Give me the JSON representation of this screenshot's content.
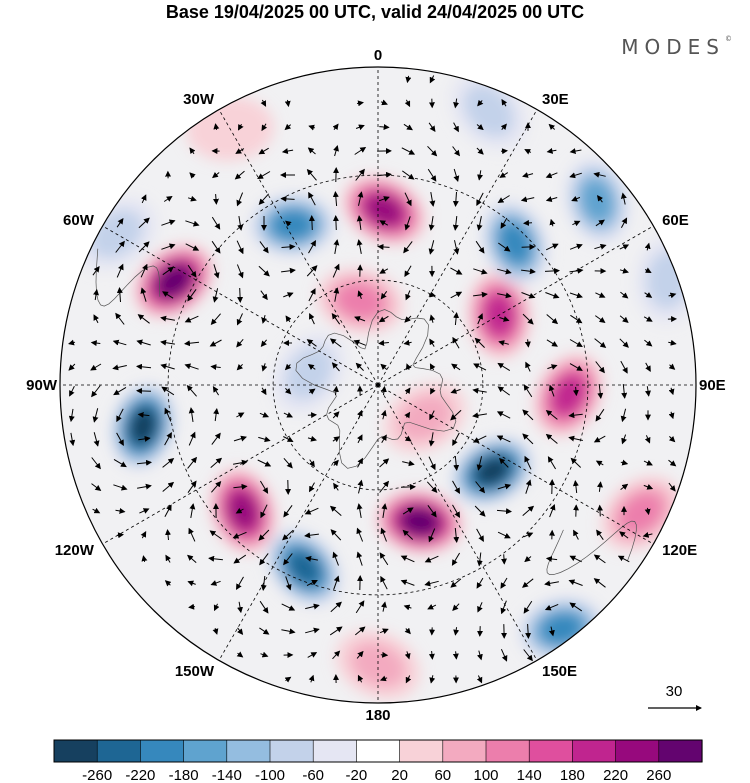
{
  "title": "Base 19/04/2025 00 UTC, valid 24/04/2025 00 UTC",
  "brand": {
    "name": "MODES",
    "mark": "©"
  },
  "map": {
    "projection": "south-polar-stereographic",
    "meridians": [
      {
        "lon": 0,
        "label": "0"
      },
      {
        "lon": 30,
        "label": "30E"
      },
      {
        "lon": 60,
        "label": "60E"
      },
      {
        "lon": 90,
        "label": "90E"
      },
      {
        "lon": 120,
        "label": "120E"
      },
      {
        "lon": 150,
        "label": "150E"
      },
      {
        "lon": 180,
        "label": "180"
      },
      {
        "lon": -150,
        "label": "150W"
      },
      {
        "lon": -120,
        "label": "120W"
      },
      {
        "lon": -90,
        "label": "90W"
      },
      {
        "lon": -60,
        "label": "60W"
      },
      {
        "lon": -30,
        "label": "30W"
      }
    ],
    "anomaly_centers": [
      {
        "lon": 2,
        "r": 0.55,
        "v": 230
      },
      {
        "lon": -28,
        "r": 0.57,
        "v": -200
      },
      {
        "lon": -63,
        "r": 0.72,
        "v": 260
      },
      {
        "lon": -100,
        "r": 0.75,
        "v": -260
      },
      {
        "lon": -133,
        "r": 0.58,
        "v": 230
      },
      {
        "lon": -158,
        "r": 0.62,
        "v": -250
      },
      {
        "lon": 163,
        "r": 0.45,
        "v": 260
      },
      {
        "lon": 127,
        "r": 0.45,
        "v": -260
      },
      {
        "lon": 93,
        "r": 0.6,
        "v": 210
      },
      {
        "lon": 60,
        "r": 0.44,
        "v": 200
      },
      {
        "lon": 44,
        "r": 0.62,
        "v": -190
      },
      {
        "lon": 50,
        "r": 0.9,
        "v": -140
      },
      {
        "lon": 143,
        "r": 0.96,
        "v": -210
      },
      {
        "lon": 116,
        "r": 0.92,
        "v": 100
      },
      {
        "lon": -12,
        "r": 0.27,
        "v": 120
      },
      {
        "lon": 22,
        "r": 0.93,
        "v": -80
      },
      {
        "lon": -60,
        "r": 0.95,
        "v": -60
      },
      {
        "lon": -80,
        "r": 0.22,
        "v": -60
      },
      {
        "lon": 70,
        "r": 0.97,
        "v": -60
      },
      {
        "lon": 180,
        "r": 0.88,
        "v": 60
      },
      {
        "lon": 125,
        "r": 0.18,
        "v": 60
      },
      {
        "lon": -30,
        "r": 0.93,
        "v": 40
      }
    ]
  },
  "vector_key": {
    "value": "30"
  },
  "colorbar": {
    "ticks": [
      "-260",
      "-220",
      "-180",
      "-140",
      "-100",
      "-60",
      "-20",
      "20",
      "60",
      "100",
      "140",
      "180",
      "220",
      "260"
    ],
    "colors": [
      "#16405f",
      "#1e6694",
      "#3688bd",
      "#5fa3cf",
      "#94bde0",
      "#c3d2ea",
      "#e5e6f3",
      "#ffffff",
      "#f8d2d8",
      "#f3aac0",
      "#ec7eac",
      "#df4f9e",
      "#c0258f",
      "#97097d",
      "#63046f"
    ]
  }
}
